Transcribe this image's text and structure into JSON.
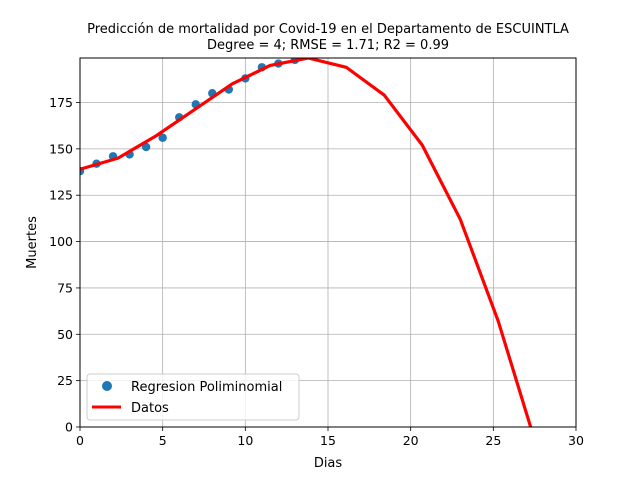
{
  "chart_data": {
    "type": "scatter",
    "title": "Predicción de mortalidad por Covid-19 en el Departamento de  ESCUINTLA",
    "subtitle": "Degree = 4; RMSE = 1.71; R2 = 0.99",
    "xlabel": "Dias",
    "ylabel": "Muertes",
    "xlim": [
      0,
      30
    ],
    "ylim": [
      0,
      199
    ],
    "xticks": [
      0,
      5,
      10,
      15,
      20,
      25,
      30
    ],
    "yticks": [
      0,
      25,
      50,
      75,
      100,
      125,
      150,
      175
    ],
    "grid": true,
    "legend_position": "bottom-left",
    "series": [
      {
        "name": "Regresion Poliminomial",
        "kind": "scatter",
        "color": "#1f77b4",
        "x": [
          0,
          1,
          2,
          3,
          4,
          5,
          6,
          7,
          8,
          9,
          10,
          11,
          12,
          13
        ],
        "y": [
          138,
          142,
          146,
          147,
          151,
          156,
          167,
          174,
          180,
          182,
          188,
          194,
          196,
          198
        ]
      },
      {
        "name": "Datos",
        "kind": "line",
        "color": "#ff0000",
        "x": [
          0,
          2.3,
          4.6,
          6.9,
          9.2,
          11.5,
          13.8,
          16.1,
          18.4,
          20.7,
          23.0,
          25.3,
          27.6
        ],
        "y": [
          139,
          145,
          157,
          171,
          185,
          195,
          199,
          194,
          179,
          152,
          112,
          57,
          -10
        ]
      }
    ]
  }
}
